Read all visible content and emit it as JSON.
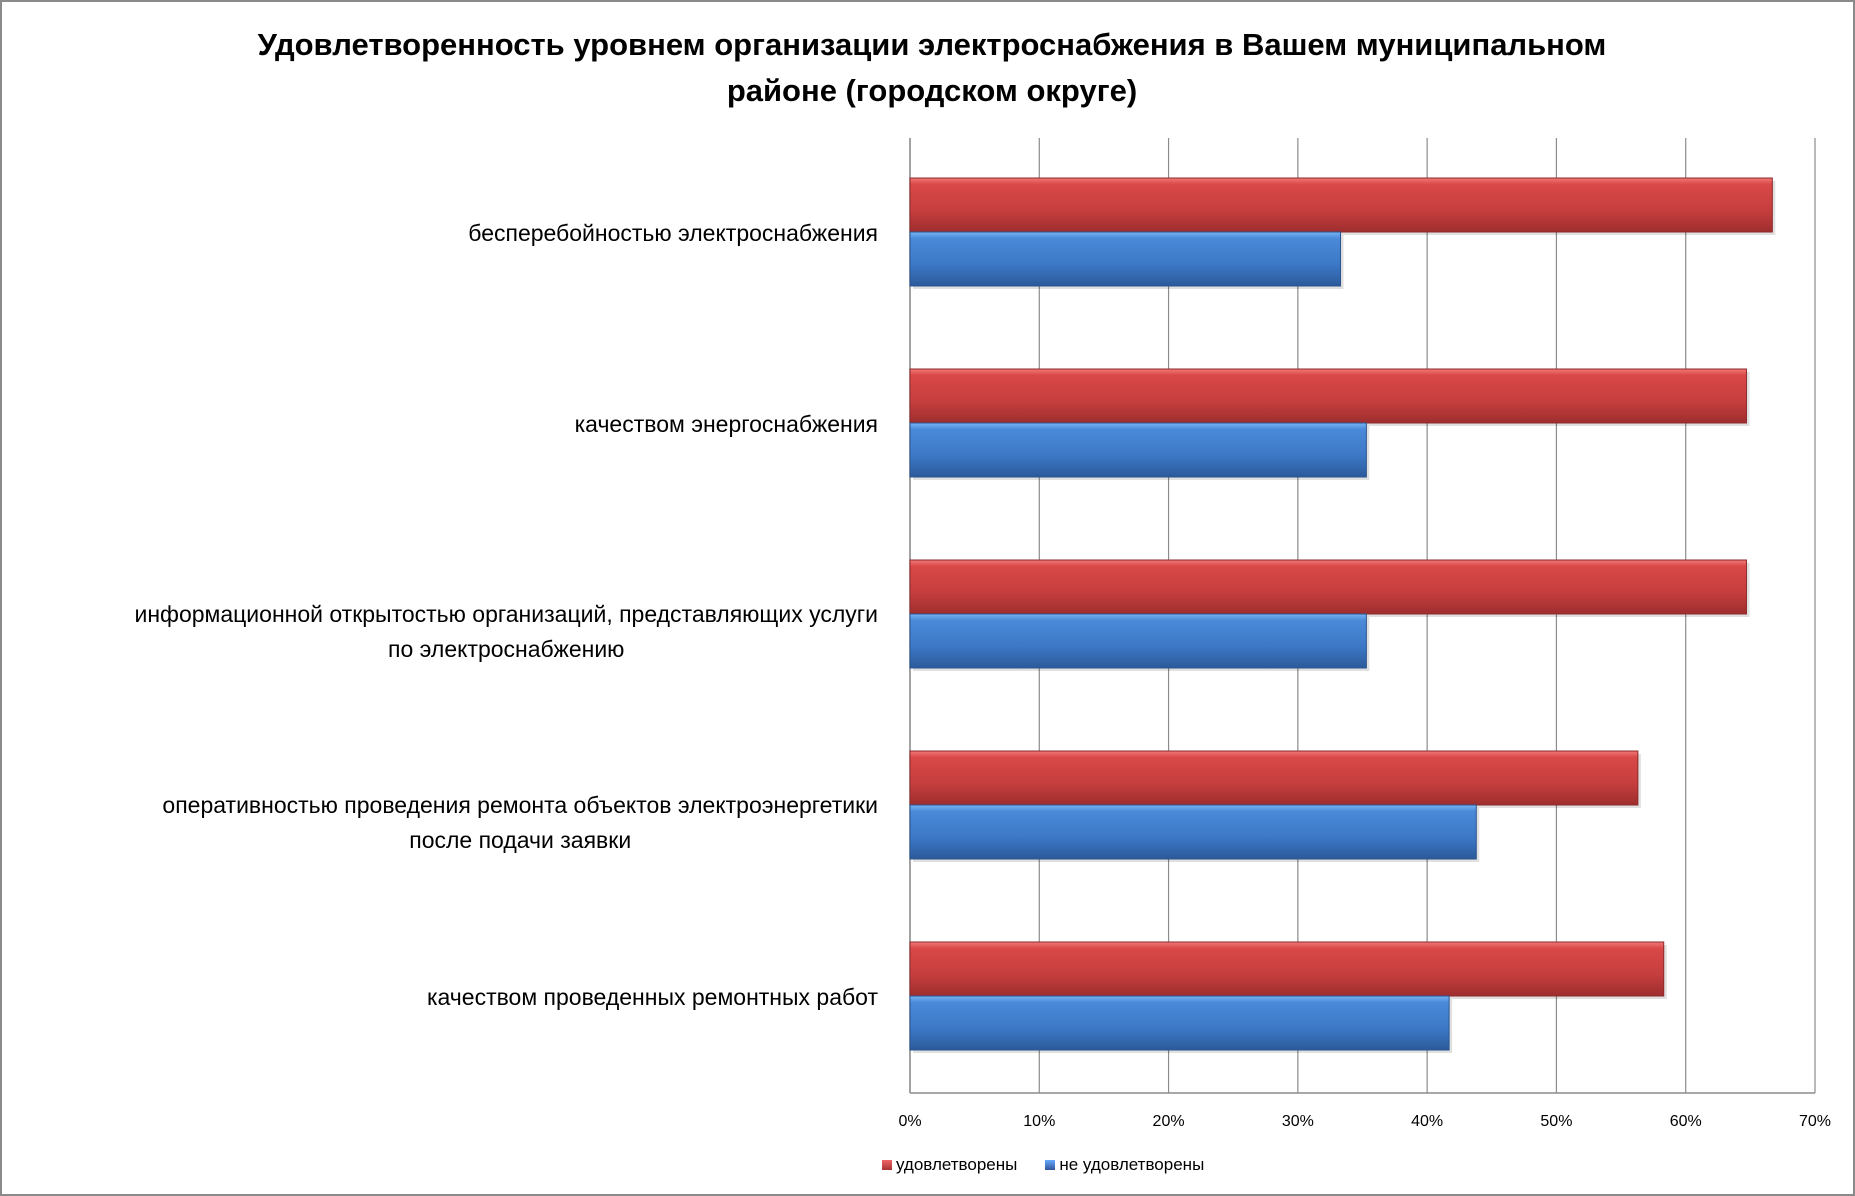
{
  "chart_data": {
    "type": "bar",
    "orientation": "horizontal",
    "title": "Удовлетворенность уровнем организации электроснабжения в Вашем муниципальном районе (городском округе)",
    "title_lines": [
      "Удовлетворенность уровнем организации электроснабжения в Вашем муниципальном",
      "районе (городском округе)"
    ],
    "categories": [
      "бесперебойностью электроснабжения",
      "качеством энергоснабжения",
      "информационной открытостью организаций, представляющих услуги по электроснабжению",
      "оперативностью проведения ремонта объектов электроэнергетики после подачи заявки",
      "качеством проведенных ремонтных работ"
    ],
    "category_lines": [
      [
        "бесперебойностью электроснабжения"
      ],
      [
        "качеством энергоснабжения"
      ],
      [
        "информационной открытостью организаций, представляющих услуги",
        "по электроснабжению"
      ],
      [
        "оперативностью проведения ремонта объектов электроэнергетики",
        "после подачи заявки"
      ],
      [
        "качеством проведенных ремонтных работ"
      ]
    ],
    "series": [
      {
        "name": "удовлетворены",
        "color": "#c0393a",
        "values": [
          66.7,
          64.7,
          64.7,
          56.3,
          58.3
        ]
      },
      {
        "name": "не удовлетворены",
        "color": "#3a73c0",
        "values": [
          33.3,
          35.3,
          35.3,
          43.8,
          41.7
        ]
      }
    ],
    "xlim": [
      0,
      70
    ],
    "xticks": [
      "0%",
      "10%",
      "20%",
      "30%",
      "40%",
      "50%",
      "60%",
      "70%"
    ],
    "grid": true,
    "legend": "bottom"
  }
}
